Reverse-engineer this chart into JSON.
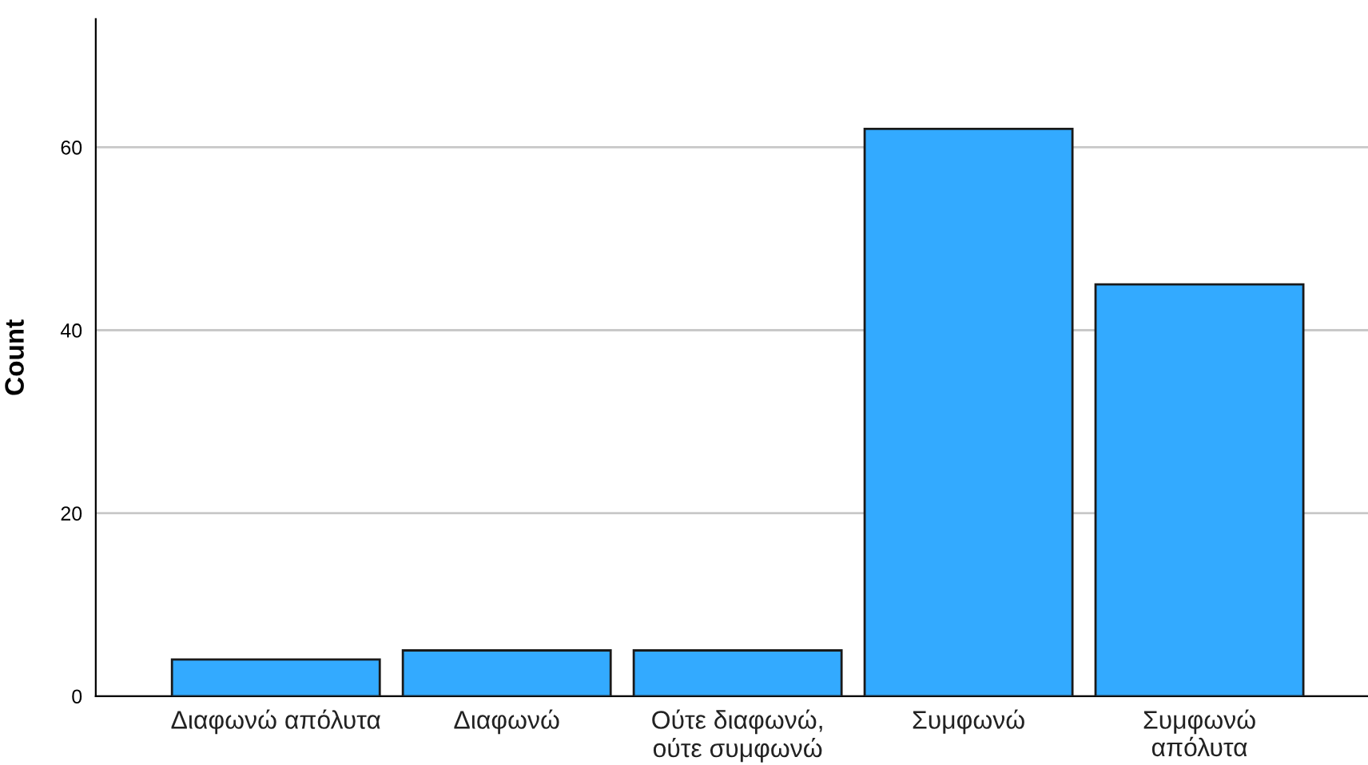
{
  "chart_data": {
    "type": "bar",
    "ylabel": "Count",
    "categories": [
      "Διαφωνώ απόλυτα",
      "Διαφωνώ",
      "Ούτε διαφωνώ,\nούτε συμφωνώ",
      "Συμφωνώ",
      "Συμφωνώ\nαπόλυτα"
    ],
    "values": [
      4,
      5,
      5,
      62,
      45
    ],
    "color": "#33aaff",
    "ylim": [
      0,
      74
    ],
    "yticks": [
      0,
      20,
      40,
      60
    ],
    "grid": "y"
  }
}
